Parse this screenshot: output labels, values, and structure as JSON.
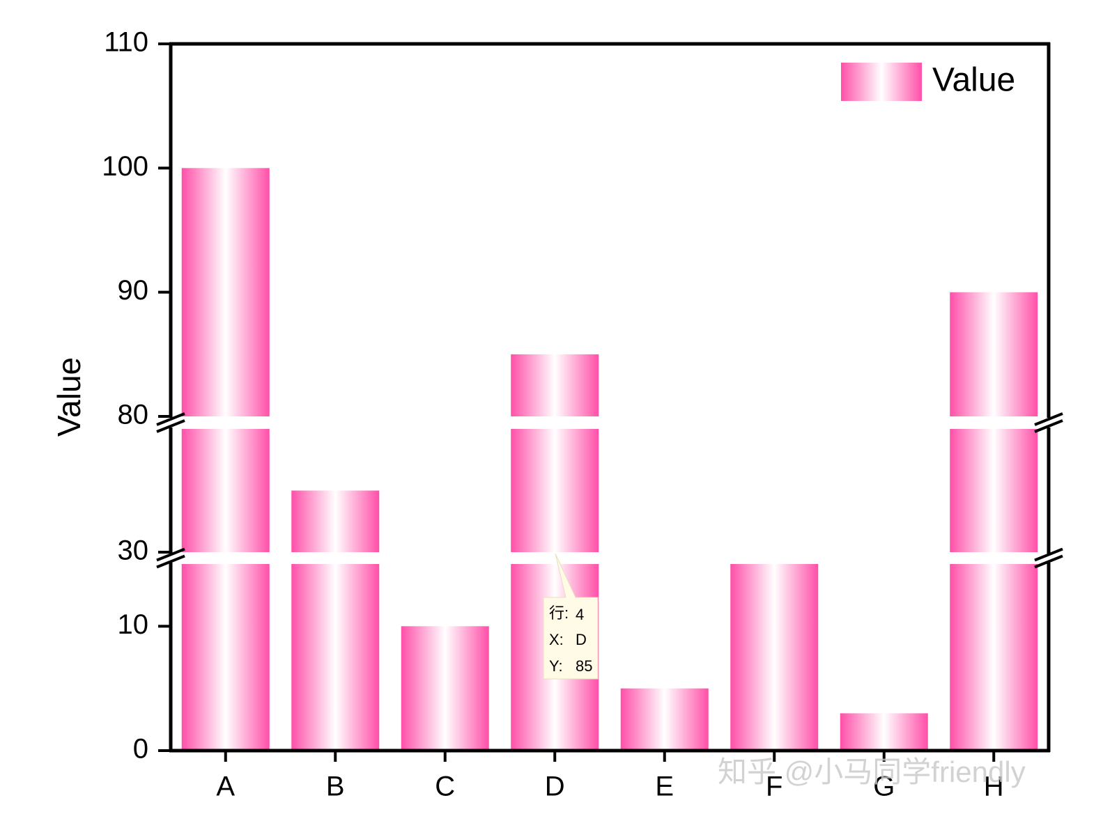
{
  "chart_data": {
    "type": "bar",
    "ylabel": "Value",
    "categories": [
      "A",
      "B",
      "C",
      "D",
      "E",
      "F",
      "G",
      "H"
    ],
    "series": [
      {
        "name": "Value",
        "color": "#ff4fa8",
        "values": [
          100,
          40,
          10,
          85,
          5,
          20,
          3,
          90
        ]
      }
    ],
    "y_segments": [
      {
        "ylim": [
          0,
          15
        ],
        "yticks": [
          0,
          10
        ]
      },
      {
        "ylim": [
          30,
          50
        ],
        "yticks": [
          30
        ]
      },
      {
        "ylim": [
          80,
          110
        ],
        "yticks": [
          80,
          90,
          100,
          110
        ]
      }
    ],
    "legend": "upper right",
    "tooltip": {
      "row_label": "行:",
      "row": 4,
      "x_label": "X:",
      "x": "D",
      "y_label": "Y:",
      "y": 85
    },
    "watermark": "知乎 @小马同学friendly"
  }
}
